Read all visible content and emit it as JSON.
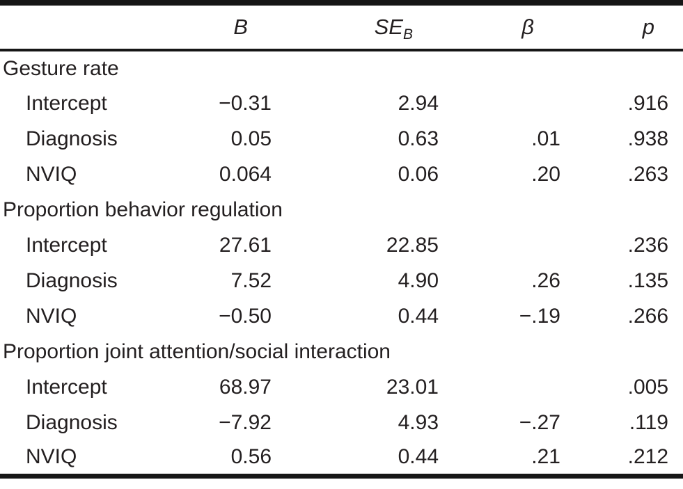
{
  "colors": {
    "background": "#ffffff",
    "text": "#231f20",
    "rule": "#161616"
  },
  "table": {
    "header": {
      "empty": "",
      "b": "B",
      "se": "SE",
      "se_sub": "B",
      "beta": "β",
      "p": "p"
    },
    "groups": [
      {
        "label": "Gesture rate",
        "rows": [
          {
            "label": "Intercept",
            "b": "−0.31",
            "se": "2.94",
            "beta": "",
            "p": ".916"
          },
          {
            "label": "Diagnosis",
            "b": "0.05",
            "se": "0.63",
            "beta": ".01",
            "p": ".938"
          },
          {
            "label": "NVIQ",
            "b": "0.064",
            "se": "0.06",
            "beta": ".20",
            "p": ".263"
          }
        ]
      },
      {
        "label": "Proportion behavior regulation",
        "rows": [
          {
            "label": "Intercept",
            "b": "27.61",
            "se": "22.85",
            "beta": "",
            "p": ".236"
          },
          {
            "label": "Diagnosis",
            "b": "7.52",
            "se": "4.90",
            "beta": ".26",
            "p": ".135"
          },
          {
            "label": "NVIQ",
            "b": "−0.50",
            "se": "0.44",
            "beta": "−.19",
            "p": ".266"
          }
        ]
      },
      {
        "label": "Proportion joint attention/social interaction",
        "rows": [
          {
            "label": "Intercept",
            "b": "68.97",
            "se": "23.01",
            "beta": "",
            "p": ".005"
          },
          {
            "label": "Diagnosis",
            "b": "−7.92",
            "se": "4.93",
            "beta": "−.27",
            "p": ".119"
          },
          {
            "label": "NVIQ",
            "b": "0.56",
            "se": "0.44",
            "beta": ".21",
            "p": ".212"
          }
        ]
      }
    ]
  },
  "chart_data": {
    "type": "table",
    "columns": [
      "Predictor",
      "B",
      "SE_B",
      "beta",
      "p"
    ],
    "sections": [
      {
        "title": "Gesture rate",
        "rows": [
          [
            "Intercept",
            -0.31,
            2.94,
            null,
            0.916
          ],
          [
            "Diagnosis",
            0.05,
            0.63,
            0.01,
            0.938
          ],
          [
            "NVIQ",
            0.064,
            0.06,
            0.2,
            0.263
          ]
        ]
      },
      {
        "title": "Proportion behavior regulation",
        "rows": [
          [
            "Intercept",
            27.61,
            22.85,
            null,
            0.236
          ],
          [
            "Diagnosis",
            7.52,
            4.9,
            0.26,
            0.135
          ],
          [
            "NVIQ",
            -0.5,
            0.44,
            -0.19,
            0.266
          ]
        ]
      },
      {
        "title": "Proportion joint attention/social interaction",
        "rows": [
          [
            "Intercept",
            68.97,
            23.01,
            null,
            0.005
          ],
          [
            "Diagnosis",
            -7.92,
            4.93,
            -0.27,
            0.119
          ],
          [
            "NVIQ",
            0.56,
            0.44,
            0.21,
            0.212
          ]
        ]
      }
    ]
  }
}
